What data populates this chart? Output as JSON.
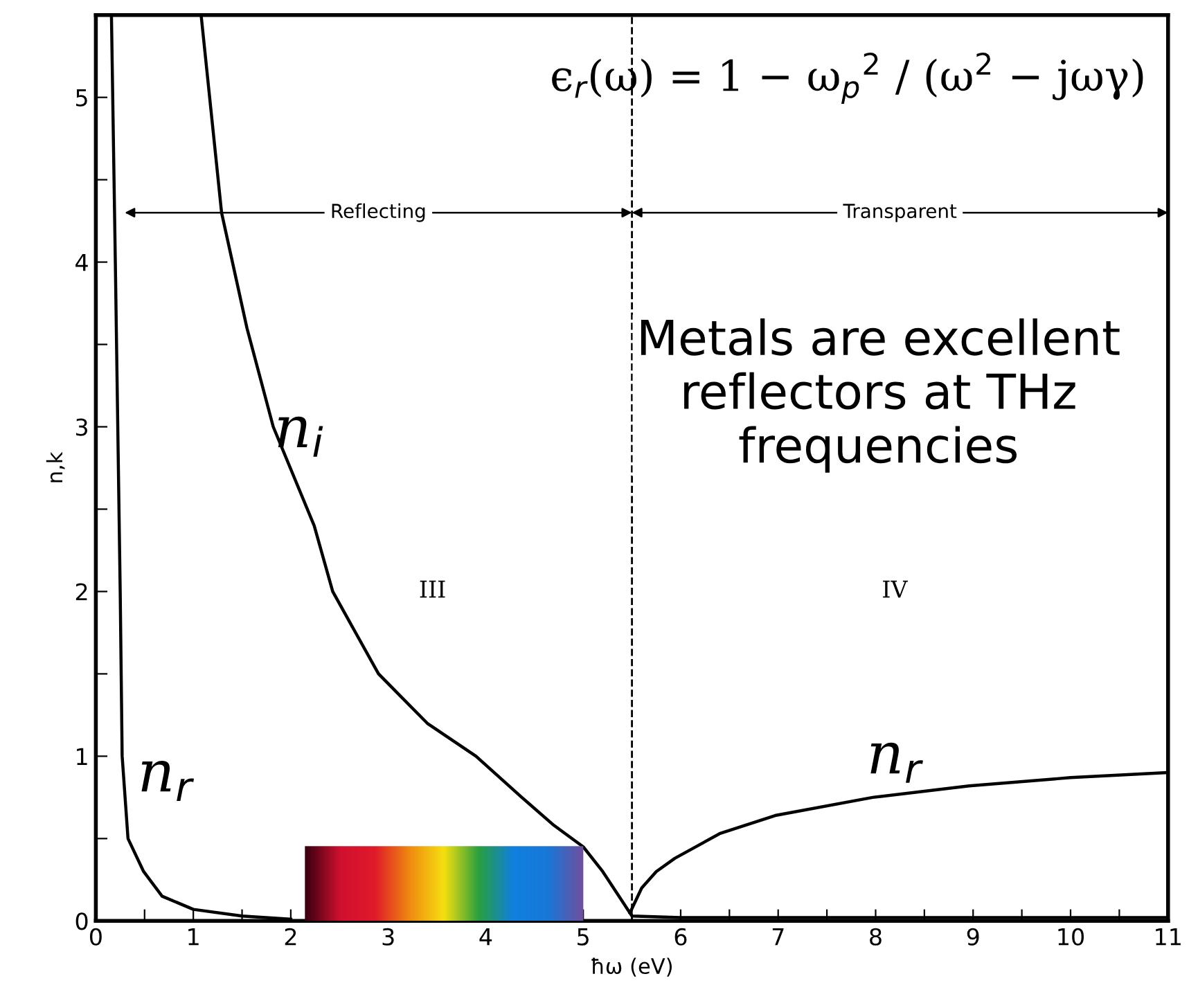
{
  "chart_data": {
    "type": "line",
    "xlabel": "ħω (eV)",
    "ylabel": "n,k",
    "xlim": [
      0,
      11
    ],
    "ylim": [
      0,
      5.5
    ],
    "xticks": [
      0,
      {
        "value": 0.5,
        "label": null
      },
      1,
      {
        "value": 1.5,
        "label": null
      },
      2,
      {
        "value": 2.5,
        "label": null
      },
      3,
      {
        "value": 3.5,
        "label": null
      },
      4,
      {
        "value": 4.5,
        "label": null
      },
      5,
      {
        "value": 5.5,
        "label": null
      },
      6,
      {
        "value": 6.5,
        "label": null
      },
      7,
      {
        "value": 7.5,
        "label": null
      },
      8,
      {
        "value": 8.5,
        "label": null
      },
      9,
      {
        "value": 9.5,
        "label": null
      },
      10,
      {
        "value": 10.5,
        "label": null
      },
      11
    ],
    "yticks": [
      0,
      {
        "value": 0.5,
        "label": null
      },
      1,
      {
        "value": 1.5,
        "label": null
      },
      2,
      {
        "value": 2.5,
        "label": null
      },
      3,
      {
        "value": 3.5,
        "label": null
      },
      4,
      {
        "value": 4.5,
        "label": null
      },
      5
    ],
    "grid": false,
    "legend": false,
    "marker": "none",
    "line_style": "solid",
    "series": [
      {
        "name": "n$_{i}$",
        "color": "#000000",
        "x": [
          1.08,
          1.29,
          1.55,
          1.82,
          2.24,
          2.43,
          2.9,
          3.4,
          3.9,
          4.37,
          4.7,
          5.0,
          5.2,
          5.4,
          5.5,
          6.0,
          7.0,
          8.0,
          9.0,
          10.0,
          11.0
        ],
        "values": [
          5.5,
          4.3,
          3.6,
          3.0,
          2.4,
          2.0,
          1.5,
          1.2,
          1.0,
          0.75,
          0.58,
          0.45,
          0.3,
          0.12,
          0.03,
          0.02,
          0.02,
          0.02,
          0.02,
          0.02,
          0.02
        ]
      },
      {
        "name": "n$_{r}$",
        "color": "#000000",
        "x": [
          0.16,
          0.2,
          0.25,
          0.27,
          0.33,
          0.49,
          0.68,
          1.0,
          1.5,
          2.0
        ],
        "values": [
          5.5,
          4.0,
          2.0,
          1.0,
          0.5,
          0.3,
          0.15,
          0.07,
          0.03,
          0.01
        ]
      },
      {
        "name": "n$_{r}$",
        "color": "#000000",
        "x": [
          5.48,
          5.6,
          5.75,
          5.94,
          6.4,
          6.97,
          7.97,
          8.96,
          10.0,
          10.98
        ],
        "values": [
          0.05,
          0.2,
          0.3,
          0.38,
          0.53,
          0.64,
          0.75,
          0.82,
          0.87,
          0.9
        ]
      }
    ],
    "ref_lines": [
      {
        "axis": "x",
        "value": 5.5,
        "line_style": "dashed",
        "color": "#000000"
      }
    ],
    "annotations": [
      "ϵ$_{r}$(ω) = 1 − ω$_{p}$$^{2}$ / (ω$^{2}$ − jωγ)",
      "Metals are excellent reflectors at THz frequencies",
      {
        "text": "Reflecting",
        "x": 5.5,
        "y": 4.3
      },
      {
        "text": "Transparent",
        "x": 5.5,
        "y": 4.3
      },
      "III",
      "IV"
    ]
  }
}
